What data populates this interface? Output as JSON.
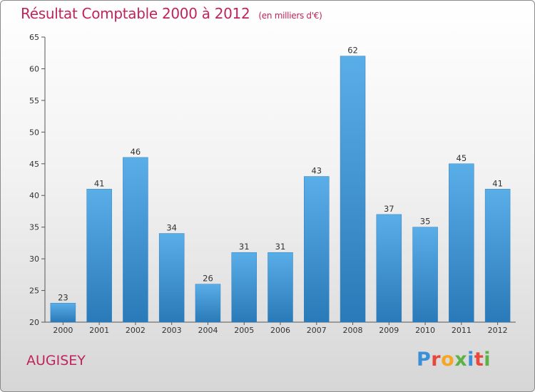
{
  "header": {
    "title": "Résultat Comptable 2000 à 2012",
    "unit": "(en milliers d'€)"
  },
  "footer": {
    "place": "AUGISEY",
    "logo_text": "Proxiti",
    "logo_colors": [
      "#3a8fd9",
      "#e8483b",
      "#f5a623",
      "#5bb346",
      "#3a8fd9",
      "#e8483b",
      "#5bb346"
    ]
  },
  "colors": {
    "bar_top": "#5aaee8",
    "bar_bottom": "#2a79b8",
    "title": "#c0245c"
  },
  "chart_data": {
    "type": "bar",
    "title": "Résultat Comptable 2000 à 2012",
    "subtitle": "(en milliers d'€)",
    "categories": [
      "2000",
      "2001",
      "2002",
      "2003",
      "2004",
      "2005",
      "2006",
      "2007",
      "2008",
      "2009",
      "2010",
      "2011",
      "2012"
    ],
    "values": [
      23,
      41,
      46,
      34,
      26,
      31,
      31,
      43,
      62,
      37,
      35,
      45,
      41
    ],
    "xlabel": "",
    "ylabel": "",
    "ylim": [
      20,
      65
    ],
    "yticks": [
      20,
      25,
      30,
      35,
      40,
      45,
      50,
      55,
      60,
      65
    ],
    "grid": false,
    "legend": "none"
  }
}
